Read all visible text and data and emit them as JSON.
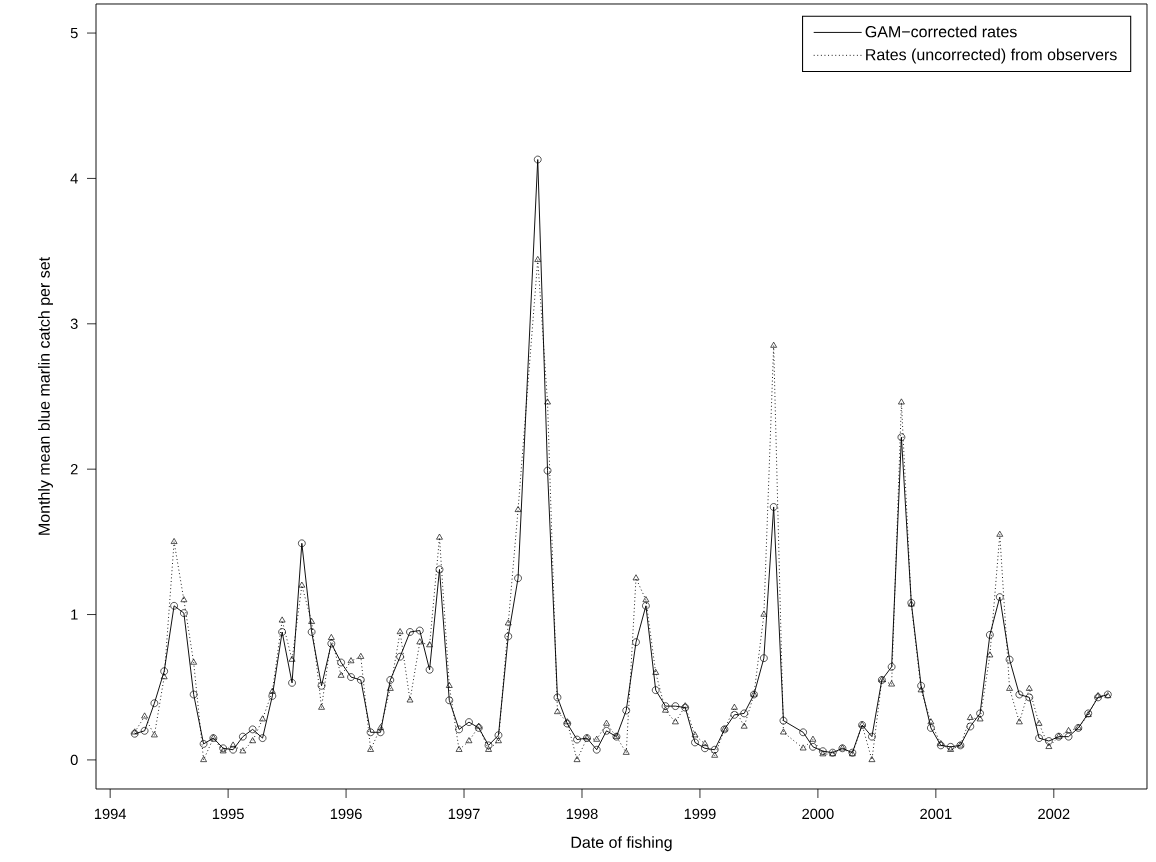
{
  "chart_data": {
    "type": "line",
    "xlabel": "Date of fishing",
    "ylabel": "Monthly mean blue marlin catch per set",
    "x": [
      1994.208,
      1994.292,
      1994.375,
      1994.458,
      1994.542,
      1994.625,
      1994.708,
      1994.792,
      1994.875,
      1994.958,
      1995.042,
      1995.125,
      1995.208,
      1995.292,
      1995.375,
      1995.458,
      1995.542,
      1995.625,
      1995.708,
      1995.792,
      1995.875,
      1995.958,
      1996.042,
      1996.125,
      1996.208,
      1996.292,
      1996.375,
      1996.458,
      1996.542,
      1996.625,
      1996.708,
      1996.792,
      1996.875,
      1996.958,
      1997.042,
      1997.125,
      1997.208,
      1997.292,
      1997.375,
      1997.458,
      1997.625,
      1997.708,
      1997.792,
      1997.875,
      1997.958,
      1998.042,
      1998.125,
      1998.208,
      1998.292,
      1998.375,
      1998.458,
      1998.542,
      1998.625,
      1998.708,
      1998.792,
      1998.875,
      1998.958,
      1999.042,
      1999.125,
      1999.208,
      1999.292,
      1999.375,
      1999.458,
      1999.542,
      1999.625,
      1999.708,
      1999.875,
      1999.958,
      2000.042,
      2000.125,
      2000.208,
      2000.292,
      2000.375,
      2000.458,
      2000.542,
      2000.625,
      2000.708,
      2000.792,
      2000.875,
      2000.958,
      2001.042,
      2001.125,
      2001.208,
      2001.292,
      2001.375,
      2001.458,
      2001.542,
      2001.625,
      2001.708,
      2001.792,
      2001.875,
      2001.958,
      2002.042,
      2002.125,
      2002.208,
      2002.292,
      2002.375,
      2002.458
    ],
    "series": [
      {
        "name": "GAM−corrected rates",
        "color": "#000000",
        "marker": "circle",
        "line_style": "solid",
        "values": [
          0.18,
          0.2,
          0.39,
          0.61,
          1.06,
          1.01,
          0.45,
          0.11,
          0.15,
          0.08,
          0.07,
          0.16,
          0.21,
          0.15,
          0.44,
          0.88,
          0.53,
          1.49,
          0.88,
          0.51,
          0.8,
          0.67,
          0.57,
          0.55,
          0.19,
          0.19,
          0.55,
          0.71,
          0.88,
          0.89,
          0.62,
          1.31,
          0.41,
          0.21,
          0.26,
          0.22,
          0.1,
          0.17,
          0.85,
          1.25,
          4.13,
          1.99,
          0.43,
          0.25,
          0.14,
          0.15,
          0.07,
          0.2,
          0.16,
          0.34,
          0.81,
          1.06,
          0.48,
          0.37,
          0.37,
          0.36,
          0.12,
          0.08,
          0.07,
          0.21,
          0.31,
          0.32,
          0.45,
          0.7,
          1.74,
          0.27,
          0.19,
          0.09,
          0.06,
          0.05,
          0.08,
          0.05,
          0.24,
          0.16,
          0.55,
          0.64,
          2.22,
          1.08,
          0.51,
          0.22,
          0.1,
          0.09,
          0.1,
          0.23,
          0.32,
          0.86,
          1.12,
          0.69,
          0.45,
          0.43,
          0.15,
          0.13,
          0.16,
          0.16,
          0.22,
          0.32,
          0.43,
          0.45
        ]
      },
      {
        "name": "Rates (uncorrected) from observers",
        "color": "#000000",
        "marker": "triangle",
        "line_style": "dotted",
        "values": [
          0.19,
          0.3,
          0.17,
          0.57,
          1.5,
          1.1,
          0.67,
          0.0,
          0.15,
          0.06,
          0.1,
          0.06,
          0.13,
          0.28,
          0.47,
          0.96,
          0.69,
          1.2,
          0.95,
          0.36,
          0.84,
          0.58,
          0.68,
          0.71,
          0.07,
          0.22,
          0.49,
          0.88,
          0.41,
          0.81,
          0.79,
          1.53,
          0.51,
          0.07,
          0.13,
          0.23,
          0.07,
          0.13,
          0.94,
          1.72,
          3.44,
          2.46,
          0.33,
          0.26,
          0.0,
          0.15,
          0.14,
          0.25,
          0.16,
          0.05,
          1.25,
          1.1,
          0.6,
          0.34,
          0.26,
          0.37,
          0.17,
          0.11,
          0.03,
          0.21,
          0.36,
          0.23,
          0.45,
          1.0,
          2.85,
          0.19,
          0.08,
          0.14,
          0.04,
          0.04,
          0.08,
          0.04,
          0.24,
          0.0,
          0.55,
          0.52,
          2.46,
          1.07,
          0.48,
          0.26,
          0.11,
          0.07,
          0.1,
          0.29,
          0.28,
          0.72,
          1.55,
          0.49,
          0.26,
          0.49,
          0.25,
          0.09,
          0.16,
          0.2,
          0.22,
          0.31,
          0.44,
          0.44
        ]
      }
    ],
    "xlim": [
      1993.88,
      2002.79
    ],
    "ylim": [
      -0.2,
      5.2
    ],
    "xticks": [
      1994,
      1995,
      1996,
      1997,
      1998,
      1999,
      2000,
      2001,
      2002
    ],
    "yticks": [
      0,
      1,
      2,
      3,
      4,
      5
    ],
    "legend": "top right"
  }
}
